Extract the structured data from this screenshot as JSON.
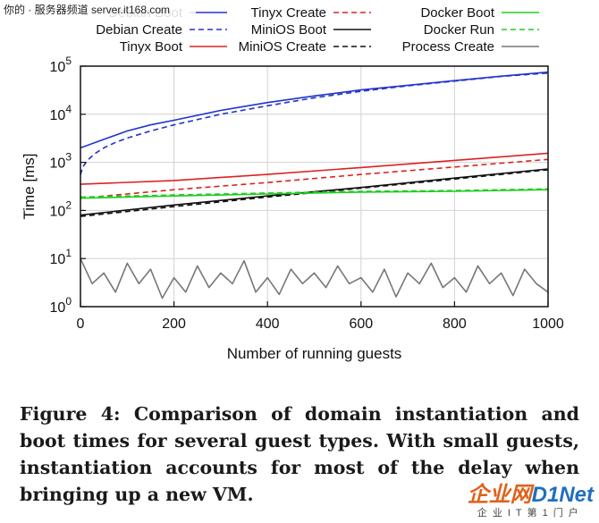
{
  "watermark": {
    "top_text": "你的 · 服务器频道 server.it168.com",
    "logo_main_a": "企业网",
    "logo_main_b": "D1Net",
    "logo_sub": "企业IT第1门户"
  },
  "caption": "Figure 4: Comparison of domain instantiation and boot times for several guest types. With small guests, instantiation accounts for most of the delay when bringing up a new VM.",
  "chart_data": {
    "type": "line",
    "xlabel": "Number of running guests",
    "ylabel": "Time [ms]",
    "xlim": [
      0,
      1000
    ],
    "ylim": [
      1,
      100000
    ],
    "yscale": "log",
    "grid": true,
    "legend_position": "top",
    "x_ticks": [
      "0",
      "200",
      "400",
      "600",
      "800",
      "1000"
    ],
    "y_ticks": [
      {
        "base": "10",
        "exp": "0"
      },
      {
        "base": "10",
        "exp": "1"
      },
      {
        "base": "10",
        "exp": "2"
      },
      {
        "base": "10",
        "exp": "3"
      },
      {
        "base": "10",
        "exp": "4"
      },
      {
        "base": "10",
        "exp": "5"
      }
    ],
    "series": [
      {
        "name": "Debian Boot",
        "color": "#2233cc",
        "dash": "solid",
        "x": [
          0,
          50,
          100,
          150,
          200,
          300,
          400,
          500,
          600,
          700,
          800,
          900,
          1000
        ],
        "y": [
          2000,
          3000,
          4500,
          6000,
          7500,
          12000,
          17500,
          24000,
          32000,
          40000,
          50000,
          62000,
          75000
        ]
      },
      {
        "name": "Debian Create",
        "color": "#2233cc",
        "dash": "dashed",
        "x": [
          0,
          5,
          15,
          30,
          50,
          75,
          100,
          150,
          200,
          300,
          400,
          500,
          600,
          700,
          800,
          900,
          1000
        ],
        "y": [
          550,
          800,
          1100,
          1500,
          2000,
          2600,
          3200,
          4500,
          6000,
          10000,
          15000,
          22000,
          30000,
          39000,
          49000,
          61000,
          72000
        ]
      },
      {
        "name": "Tinyx Boot",
        "color": "#dd2222",
        "dash": "solid",
        "x": [
          0,
          200,
          400,
          600,
          800,
          1000
        ],
        "y": [
          350,
          420,
          560,
          780,
          1100,
          1550
        ]
      },
      {
        "name": "Tinyx Create",
        "color": "#dd2222",
        "dash": "dashed",
        "x": [
          0,
          200,
          400,
          600,
          800,
          1000
        ],
        "y": [
          180,
          270,
          380,
          560,
          800,
          1150
        ]
      },
      {
        "name": "MiniOS Boot",
        "color": "#111111",
        "dash": "solid",
        "x": [
          0,
          200,
          400,
          600,
          800,
          1000
        ],
        "y": [
          80,
          130,
          200,
          300,
          470,
          730
        ]
      },
      {
        "name": "MiniOS Create",
        "color": "#111111",
        "dash": "dashed",
        "x": [
          0,
          200,
          400,
          600,
          800,
          1000
        ],
        "y": [
          75,
          120,
          190,
          290,
          450,
          700
        ]
      },
      {
        "name": "Docker Boot",
        "color": "#22cc22",
        "dash": "solid",
        "x": [
          0,
          200,
          400,
          600,
          800,
          1000
        ],
        "y": [
          180,
          200,
          220,
          240,
          250,
          270
        ]
      },
      {
        "name": "Docker Run",
        "color": "#22cc22",
        "dash": "dashed",
        "x": [
          0,
          200,
          400,
          600,
          800,
          1000
        ],
        "y": [
          190,
          210,
          230,
          250,
          260,
          280
        ]
      },
      {
        "name": "Process Create",
        "color": "#777777",
        "dash": "solid",
        "x": [
          0,
          25,
          50,
          75,
          100,
          125,
          150,
          175,
          200,
          225,
          250,
          275,
          300,
          325,
          350,
          375,
          400,
          425,
          450,
          475,
          500,
          525,
          550,
          575,
          600,
          625,
          650,
          675,
          700,
          725,
          750,
          775,
          800,
          825,
          850,
          875,
          900,
          925,
          950,
          975,
          1000
        ],
        "y": [
          10,
          3,
          5,
          2,
          8,
          3,
          6,
          1.5,
          4,
          2,
          7,
          2.5,
          5,
          3,
          9,
          2,
          4,
          1.8,
          6,
          3,
          5,
          2.5,
          7,
          3,
          4,
          2,
          6,
          1.6,
          5,
          3,
          8,
          2.5,
          4,
          2,
          7,
          3,
          5,
          1.7,
          6,
          3,
          2
        ]
      }
    ]
  }
}
